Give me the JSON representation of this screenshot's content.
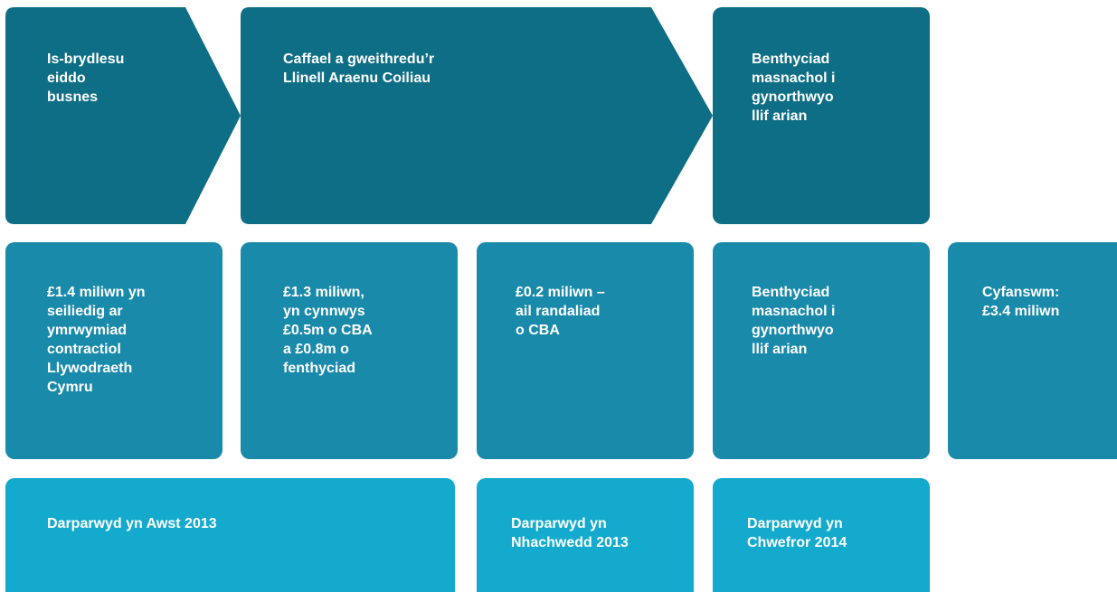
{
  "steps": [
    {
      "lines": [
        "Is-brydlesu",
        "eiddo",
        "busnes"
      ]
    },
    {
      "lines": [
        "Caffael a gweithredu’r",
        "Llinell Araenu Coiliau"
      ]
    },
    {
      "lines": [
        "Benthyciad",
        "masnachol i",
        "gynorthwyo",
        "llif arian"
      ]
    }
  ],
  "amounts": [
    {
      "lines": [
        "£1.4 miliwn yn",
        "seiliedig ar",
        "ymrwymiad",
        "contractiol",
        "Llywodraeth",
        "Cymru"
      ]
    },
    {
      "lines": [
        "£1.3 miliwn,",
        "yn cynnwys",
        "£0.5m o CBA",
        "a £0.8m o",
        "fenthyciad"
      ]
    },
    {
      "lines": [
        "£0.2 miliwn –",
        "ail randaliad",
        "o CBA"
      ]
    },
    {
      "lines": [
        "Benthyciad",
        "masnachol i",
        "gynorthwyo",
        "llif arian"
      ]
    },
    {
      "lines": [
        "Cyfanswm:",
        "£3.4 miliwn"
      ]
    }
  ],
  "delivered": [
    {
      "lines": [
        "Darparwyd yn Awst 2013"
      ]
    },
    {
      "lines": [
        "Darparwyd yn",
        "Nhachwedd 2013"
      ]
    },
    {
      "lines": [
        "Darparwyd yn",
        "Chwefror 2014"
      ]
    }
  ]
}
